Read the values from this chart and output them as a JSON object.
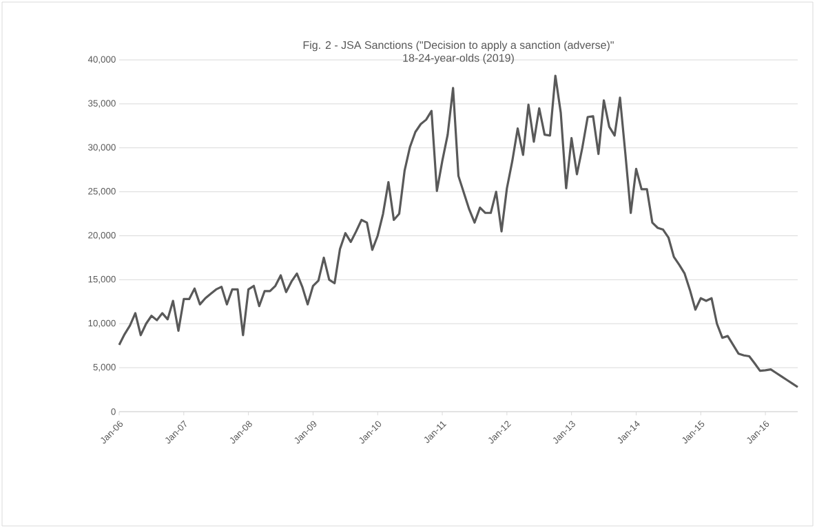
{
  "chart_data": {
    "type": "line",
    "title": "Fig. 2 - JSA Sanctions (\"Decision to apply a sanction (adverse)\"",
    "subtitle": "18-24-year-olds (2019)",
    "categories": [
      "Jan-06",
      null,
      null,
      null,
      null,
      null,
      null,
      null,
      null,
      null,
      null,
      null,
      "Jan-07",
      null,
      null,
      null,
      null,
      null,
      null,
      null,
      null,
      null,
      null,
      null,
      "Jan-08",
      null,
      null,
      null,
      null,
      null,
      null,
      null,
      null,
      null,
      null,
      null,
      "Jan-09",
      null,
      null,
      null,
      null,
      null,
      null,
      null,
      null,
      null,
      null,
      null,
      "Jan-10",
      null,
      null,
      null,
      null,
      null,
      null,
      null,
      null,
      null,
      null,
      null,
      "Jan-11",
      null,
      null,
      null,
      null,
      null,
      null,
      null,
      null,
      null,
      null,
      null,
      "Jan-12",
      null,
      null,
      null,
      null,
      null,
      null,
      null,
      null,
      null,
      null,
      null,
      "Jan-13",
      null,
      null,
      null,
      null,
      null,
      null,
      null,
      null,
      null,
      null,
      null,
      "Jan-14",
      null,
      null,
      null,
      null,
      null,
      null,
      null,
      null,
      null,
      null,
      null,
      "Jan-15",
      null,
      null,
      null,
      null,
      null,
      null,
      null,
      null,
      null,
      null,
      null,
      "Jan-16",
      null,
      null,
      null,
      null,
      null,
      null
    ],
    "values": [
      7600,
      8800,
      9800,
      11200,
      8700,
      10000,
      10900,
      10400,
      11200,
      10500,
      12600,
      9200,
      12800,
      12800,
      14000,
      12200,
      12900,
      13400,
      13900,
      14200,
      12200,
      13900,
      13900,
      8700,
      13900,
      14300,
      12000,
      13700,
      13700,
      14300,
      15500,
      13600,
      14800,
      15700,
      14200,
      12200,
      14300,
      14900,
      17500,
      15000,
      14600,
      18500,
      20300,
      19300,
      20500,
      21800,
      21500,
      18400,
      20000,
      22500,
      26100,
      21800,
      22500,
      27400,
      30100,
      31800,
      32700,
      33200,
      34200,
      25100,
      28500,
      31500,
      36800,
      26800,
      24900,
      23000,
      21500,
      23200,
      22600,
      22600,
      25000,
      20500,
      25400,
      28500,
      32200,
      29200,
      34900,
      30700,
      34500,
      31500,
      31400,
      38200,
      34000,
      25400,
      31100,
      27000,
      30000,
      33500,
      33600,
      29300,
      35400,
      32400,
      31400,
      35700,
      29300,
      22600,
      27600,
      25300,
      25300,
      21500,
      20900,
      20700,
      19800,
      17600,
      16700,
      15700,
      13800,
      11600,
      12900,
      12600,
      12900,
      10000,
      8400,
      8600,
      7600,
      6600,
      6400,
      6300,
      5500,
      4650,
      4700,
      4800,
      4400,
      4000,
      3600,
      3200,
      2800
    ],
    "color": "#595959",
    "ylim": [
      0,
      40000
    ],
    "yticks": [
      0,
      {
        "value": 5000,
        "label": "5,000"
      },
      {
        "value": 10000,
        "label": "10,000"
      },
      {
        "value": 15000,
        "label": "15,000"
      },
      {
        "value": 20000,
        "label": "20,000"
      },
      {
        "value": 25000,
        "label": "25,000"
      },
      {
        "value": 30000,
        "label": "30,000"
      },
      {
        "value": 35000,
        "label": "35,000"
      },
      {
        "value": 40000,
        "label": "40,000"
      }
    ],
    "grid": "y"
  }
}
